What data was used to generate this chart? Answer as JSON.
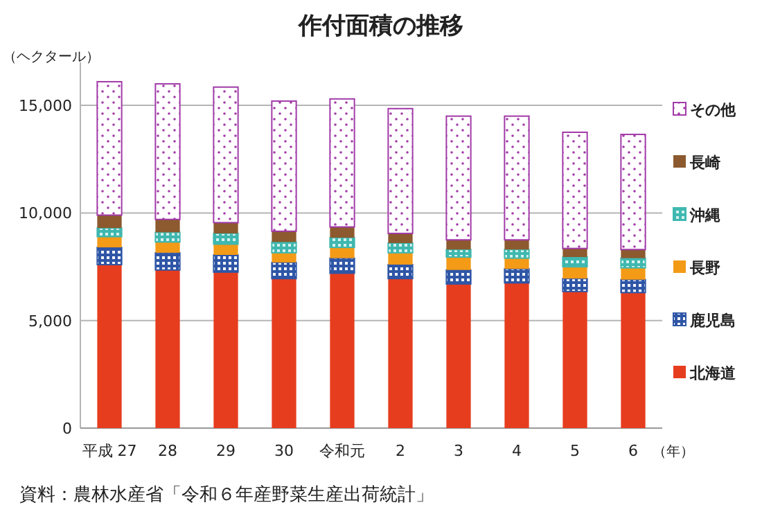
{
  "chart_data": {
    "type": "bar",
    "stacked": true,
    "title": "作付面積の推移",
    "ylabel": "（ヘクタール）",
    "xlabel": "（年）",
    "categories": [
      "平成 27",
      "28",
      "29",
      "30",
      "令和元",
      "2",
      "3",
      "4",
      "5",
      "6"
    ],
    "series": [
      {
        "name": "北海道",
        "color": "#e63d1f",
        "values": [
          7600,
          7350,
          7250,
          6950,
          7200,
          6950,
          6700,
          6750,
          6350,
          6300
        ]
      },
      {
        "name": "鹿児島",
        "color": "#2f56a6",
        "values": [
          800,
          800,
          800,
          750,
          700,
          650,
          650,
          650,
          600,
          600
        ]
      },
      {
        "name": "長野",
        "color": "#f39a17",
        "values": [
          500,
          500,
          500,
          450,
          500,
          550,
          600,
          500,
          550,
          550
        ]
      },
      {
        "name": "沖縄",
        "color": "#3fb8b0",
        "values": [
          400,
          450,
          500,
          500,
          450,
          450,
          350,
          400,
          450,
          450
        ]
      },
      {
        "name": "長崎",
        "color": "#8c5a2e",
        "values": [
          600,
          600,
          500,
          500,
          500,
          450,
          450,
          450,
          400,
          400
        ]
      },
      {
        "name": "その他",
        "color": "#a23aa8",
        "values": [
          6200,
          6300,
          6300,
          6050,
          5950,
          5800,
          5750,
          5750,
          5400,
          5350
        ]
      }
    ],
    "ylim": [
      0,
      17000
    ],
    "yticks": [
      0,
      {
        "value": 5000,
        "label": "5,000"
      },
      {
        "value": 10000,
        "label": "10,000"
      },
      {
        "value": 15000,
        "label": "15,000"
      }
    ],
    "grid": "y",
    "legend": "right",
    "annotations": [
      "資料：農林水産省「令和６年産野菜生産出荷統計」"
    ]
  }
}
